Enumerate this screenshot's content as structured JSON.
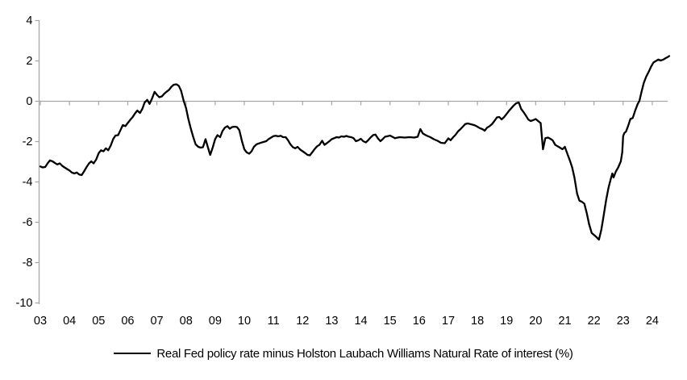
{
  "chart_data": {
    "type": "line",
    "title": "",
    "xlabel": "",
    "ylabel": "",
    "legend": "Real Fed policy rate minus Holston Laubach Williams Natural Rate of interest (%)",
    "legend_position": "bottom-center",
    "grid": "zero-line-only",
    "ylim": [
      -10,
      4
    ],
    "xlim": [
      2003,
      2024.67
    ],
    "yticks": [
      4,
      2,
      0,
      -2,
      -4,
      -6,
      -8,
      -10
    ],
    "xticks": [
      {
        "year": 2003,
        "label": "03"
      },
      {
        "year": 2004,
        "label": "04"
      },
      {
        "year": 2005,
        "label": "05"
      },
      {
        "year": 2006,
        "label": "06"
      },
      {
        "year": 2007,
        "label": "07"
      },
      {
        "year": 2008,
        "label": "08"
      },
      {
        "year": 2009,
        "label": "09"
      },
      {
        "year": 2010,
        "label": "10"
      },
      {
        "year": 2011,
        "label": "11"
      },
      {
        "year": 2012,
        "label": "12"
      },
      {
        "year": 2013,
        "label": "13"
      },
      {
        "year": 2014,
        "label": "14"
      },
      {
        "year": 2015,
        "label": "15"
      },
      {
        "year": 2016,
        "label": "16"
      },
      {
        "year": 2017,
        "label": "17"
      },
      {
        "year": 2018,
        "label": "18"
      },
      {
        "year": 2019,
        "label": "19"
      },
      {
        "year": 2020,
        "label": "20"
      },
      {
        "year": 2021,
        "label": "21"
      },
      {
        "year": 2022,
        "label": "22"
      },
      {
        "year": 2023,
        "label": "23"
      },
      {
        "year": 2024,
        "label": "24"
      }
    ],
    "colors": {
      "line": "#000000",
      "axis": "#a6a6a6",
      "text": "#000000",
      "background": "#ffffff"
    },
    "series": [
      {
        "name": "Real Fed policy rate minus Holston Laubach Williams Natural Rate of interest (%)",
        "color": "#000000",
        "points": [
          [
            2003.0,
            -3.25
          ],
          [
            2003.08,
            -3.3
          ],
          [
            2003.17,
            -3.28
          ],
          [
            2003.25,
            -3.1
          ],
          [
            2003.33,
            -2.95
          ],
          [
            2003.42,
            -3.0
          ],
          [
            2003.5,
            -3.08
          ],
          [
            2003.58,
            -3.15
          ],
          [
            2003.67,
            -3.1
          ],
          [
            2003.75,
            -3.22
          ],
          [
            2003.83,
            -3.3
          ],
          [
            2003.92,
            -3.38
          ],
          [
            2004.0,
            -3.45
          ],
          [
            2004.08,
            -3.55
          ],
          [
            2004.17,
            -3.6
          ],
          [
            2004.25,
            -3.55
          ],
          [
            2004.33,
            -3.65
          ],
          [
            2004.42,
            -3.68
          ],
          [
            2004.5,
            -3.5
          ],
          [
            2004.58,
            -3.3
          ],
          [
            2004.67,
            -3.1
          ],
          [
            2004.75,
            -3.0
          ],
          [
            2004.83,
            -3.1
          ],
          [
            2004.92,
            -2.9
          ],
          [
            2005.0,
            -2.6
          ],
          [
            2005.08,
            -2.45
          ],
          [
            2005.17,
            -2.5
          ],
          [
            2005.25,
            -2.35
          ],
          [
            2005.33,
            -2.45
          ],
          [
            2005.42,
            -2.2
          ],
          [
            2005.5,
            -1.9
          ],
          [
            2005.58,
            -1.72
          ],
          [
            2005.67,
            -1.7
          ],
          [
            2005.75,
            -1.45
          ],
          [
            2005.83,
            -1.2
          ],
          [
            2005.92,
            -1.25
          ],
          [
            2006.0,
            -1.1
          ],
          [
            2006.08,
            -0.95
          ],
          [
            2006.17,
            -0.8
          ],
          [
            2006.25,
            -0.62
          ],
          [
            2006.33,
            -0.48
          ],
          [
            2006.42,
            -0.6
          ],
          [
            2006.5,
            -0.4
          ],
          [
            2006.58,
            -0.08
          ],
          [
            2006.67,
            0.05
          ],
          [
            2006.75,
            -0.15
          ],
          [
            2006.83,
            0.1
          ],
          [
            2006.92,
            0.45
          ],
          [
            2007.0,
            0.3
          ],
          [
            2007.08,
            0.18
          ],
          [
            2007.17,
            0.22
          ],
          [
            2007.25,
            0.35
          ],
          [
            2007.33,
            0.45
          ],
          [
            2007.42,
            0.55
          ],
          [
            2007.5,
            0.7
          ],
          [
            2007.58,
            0.8
          ],
          [
            2007.67,
            0.82
          ],
          [
            2007.75,
            0.75
          ],
          [
            2007.83,
            0.5
          ],
          [
            2007.92,
            0.0
          ],
          [
            2008.0,
            -0.35
          ],
          [
            2008.08,
            -0.9
          ],
          [
            2008.17,
            -1.4
          ],
          [
            2008.25,
            -1.8
          ],
          [
            2008.33,
            -2.15
          ],
          [
            2008.42,
            -2.28
          ],
          [
            2008.5,
            -2.32
          ],
          [
            2008.58,
            -2.3
          ],
          [
            2008.67,
            -1.9
          ],
          [
            2008.75,
            -2.3
          ],
          [
            2008.83,
            -2.68
          ],
          [
            2008.92,
            -2.3
          ],
          [
            2009.0,
            -1.9
          ],
          [
            2009.08,
            -1.7
          ],
          [
            2009.17,
            -1.8
          ],
          [
            2009.25,
            -1.5
          ],
          [
            2009.33,
            -1.33
          ],
          [
            2009.42,
            -1.25
          ],
          [
            2009.5,
            -1.38
          ],
          [
            2009.58,
            -1.3
          ],
          [
            2009.67,
            -1.28
          ],
          [
            2009.75,
            -1.3
          ],
          [
            2009.83,
            -1.45
          ],
          [
            2009.92,
            -2.0
          ],
          [
            2010.0,
            -2.4
          ],
          [
            2010.08,
            -2.55
          ],
          [
            2010.17,
            -2.62
          ],
          [
            2010.25,
            -2.5
          ],
          [
            2010.33,
            -2.28
          ],
          [
            2010.42,
            -2.15
          ],
          [
            2010.58,
            -2.07
          ],
          [
            2010.75,
            -2.0
          ],
          [
            2010.83,
            -1.9
          ],
          [
            2010.92,
            -1.82
          ],
          [
            2011.0,
            -1.75
          ],
          [
            2011.08,
            -1.73
          ],
          [
            2011.17,
            -1.76
          ],
          [
            2011.25,
            -1.73
          ],
          [
            2011.33,
            -1.8
          ],
          [
            2011.42,
            -1.8
          ],
          [
            2011.5,
            -1.95
          ],
          [
            2011.58,
            -2.15
          ],
          [
            2011.67,
            -2.3
          ],
          [
            2011.75,
            -2.35
          ],
          [
            2011.83,
            -2.28
          ],
          [
            2011.92,
            -2.42
          ],
          [
            2012.0,
            -2.5
          ],
          [
            2012.08,
            -2.58
          ],
          [
            2012.17,
            -2.68
          ],
          [
            2012.25,
            -2.7
          ],
          [
            2012.33,
            -2.55
          ],
          [
            2012.42,
            -2.38
          ],
          [
            2012.5,
            -2.25
          ],
          [
            2012.58,
            -2.18
          ],
          [
            2012.67,
            -1.98
          ],
          [
            2012.75,
            -2.18
          ],
          [
            2012.83,
            -2.1
          ],
          [
            2012.92,
            -2.0
          ],
          [
            2013.0,
            -1.9
          ],
          [
            2013.08,
            -1.85
          ],
          [
            2013.17,
            -1.8
          ],
          [
            2013.25,
            -1.82
          ],
          [
            2013.33,
            -1.76
          ],
          [
            2013.42,
            -1.78
          ],
          [
            2013.5,
            -1.74
          ],
          [
            2013.58,
            -1.78
          ],
          [
            2013.67,
            -1.8
          ],
          [
            2013.75,
            -1.85
          ],
          [
            2013.83,
            -2.0
          ],
          [
            2013.92,
            -1.95
          ],
          [
            2014.0,
            -1.88
          ],
          [
            2014.08,
            -2.0
          ],
          [
            2014.17,
            -2.06
          ],
          [
            2014.25,
            -1.95
          ],
          [
            2014.33,
            -1.82
          ],
          [
            2014.42,
            -1.7
          ],
          [
            2014.5,
            -1.67
          ],
          [
            2014.58,
            -1.85
          ],
          [
            2014.67,
            -2.0
          ],
          [
            2014.75,
            -1.9
          ],
          [
            2014.83,
            -1.78
          ],
          [
            2014.92,
            -1.75
          ],
          [
            2015.0,
            -1.72
          ],
          [
            2015.17,
            -1.85
          ],
          [
            2015.33,
            -1.8
          ],
          [
            2015.5,
            -1.82
          ],
          [
            2015.67,
            -1.8
          ],
          [
            2015.83,
            -1.82
          ],
          [
            2015.95,
            -1.78
          ],
          [
            2016.04,
            -1.4
          ],
          [
            2016.13,
            -1.62
          ],
          [
            2016.25,
            -1.72
          ],
          [
            2016.38,
            -1.8
          ],
          [
            2016.5,
            -1.9
          ],
          [
            2016.63,
            -1.98
          ],
          [
            2016.75,
            -2.08
          ],
          [
            2016.88,
            -2.1
          ],
          [
            2017.0,
            -1.86
          ],
          [
            2017.08,
            -1.95
          ],
          [
            2017.17,
            -1.8
          ],
          [
            2017.25,
            -1.68
          ],
          [
            2017.33,
            -1.52
          ],
          [
            2017.42,
            -1.4
          ],
          [
            2017.5,
            -1.28
          ],
          [
            2017.58,
            -1.15
          ],
          [
            2017.67,
            -1.12
          ],
          [
            2017.75,
            -1.15
          ],
          [
            2017.83,
            -1.18
          ],
          [
            2017.92,
            -1.22
          ],
          [
            2018.0,
            -1.28
          ],
          [
            2018.08,
            -1.35
          ],
          [
            2018.17,
            -1.4
          ],
          [
            2018.25,
            -1.48
          ],
          [
            2018.33,
            -1.33
          ],
          [
            2018.42,
            -1.25
          ],
          [
            2018.5,
            -1.15
          ],
          [
            2018.58,
            -1.0
          ],
          [
            2018.67,
            -0.82
          ],
          [
            2018.75,
            -0.8
          ],
          [
            2018.83,
            -0.92
          ],
          [
            2018.92,
            -0.8
          ],
          [
            2019.0,
            -0.65
          ],
          [
            2019.08,
            -0.5
          ],
          [
            2019.17,
            -0.35
          ],
          [
            2019.25,
            -0.22
          ],
          [
            2019.33,
            -0.12
          ],
          [
            2019.42,
            -0.08
          ],
          [
            2019.5,
            -0.4
          ],
          [
            2019.58,
            -0.55
          ],
          [
            2019.67,
            -0.75
          ],
          [
            2019.75,
            -0.93
          ],
          [
            2019.83,
            -1.0
          ],
          [
            2019.92,
            -0.95
          ],
          [
            2020.0,
            -0.9
          ],
          [
            2020.08,
            -1.0
          ],
          [
            2020.17,
            -1.1
          ],
          [
            2020.25,
            -2.4
          ],
          [
            2020.33,
            -1.85
          ],
          [
            2020.42,
            -1.82
          ],
          [
            2020.5,
            -1.88
          ],
          [
            2020.58,
            -1.95
          ],
          [
            2020.67,
            -2.18
          ],
          [
            2020.75,
            -2.25
          ],
          [
            2020.83,
            -2.32
          ],
          [
            2020.92,
            -2.4
          ],
          [
            2021.0,
            -2.28
          ],
          [
            2021.08,
            -2.6
          ],
          [
            2021.17,
            -2.95
          ],
          [
            2021.25,
            -3.3
          ],
          [
            2021.33,
            -3.8
          ],
          [
            2021.42,
            -4.6
          ],
          [
            2021.5,
            -4.95
          ],
          [
            2021.58,
            -5.0
          ],
          [
            2021.67,
            -5.1
          ],
          [
            2021.75,
            -5.55
          ],
          [
            2021.83,
            -6.1
          ],
          [
            2021.92,
            -6.55
          ],
          [
            2022.0,
            -6.65
          ],
          [
            2022.08,
            -6.75
          ],
          [
            2022.17,
            -6.88
          ],
          [
            2022.25,
            -6.4
          ],
          [
            2022.33,
            -5.7
          ],
          [
            2022.42,
            -4.9
          ],
          [
            2022.5,
            -4.3
          ],
          [
            2022.58,
            -3.85
          ],
          [
            2022.63,
            -3.6
          ],
          [
            2022.67,
            -3.8
          ],
          [
            2022.75,
            -3.5
          ],
          [
            2022.83,
            -3.3
          ],
          [
            2022.92,
            -3.0
          ],
          [
            2022.97,
            -2.55
          ],
          [
            2023.0,
            -1.75
          ],
          [
            2023.04,
            -1.6
          ],
          [
            2023.1,
            -1.52
          ],
          [
            2023.17,
            -1.25
          ],
          [
            2023.25,
            -0.9
          ],
          [
            2023.33,
            -0.85
          ],
          [
            2023.42,
            -0.45
          ],
          [
            2023.5,
            -0.15
          ],
          [
            2023.56,
            0.0
          ],
          [
            2023.63,
            0.45
          ],
          [
            2023.71,
            0.9
          ],
          [
            2023.79,
            1.2
          ],
          [
            2023.88,
            1.45
          ],
          [
            2023.96,
            1.7
          ],
          [
            2024.04,
            1.9
          ],
          [
            2024.13,
            1.98
          ],
          [
            2024.21,
            2.05
          ],
          [
            2024.29,
            2.0
          ],
          [
            2024.38,
            2.05
          ],
          [
            2024.46,
            2.12
          ],
          [
            2024.54,
            2.18
          ],
          [
            2024.58,
            2.22
          ]
        ]
      }
    ]
  }
}
